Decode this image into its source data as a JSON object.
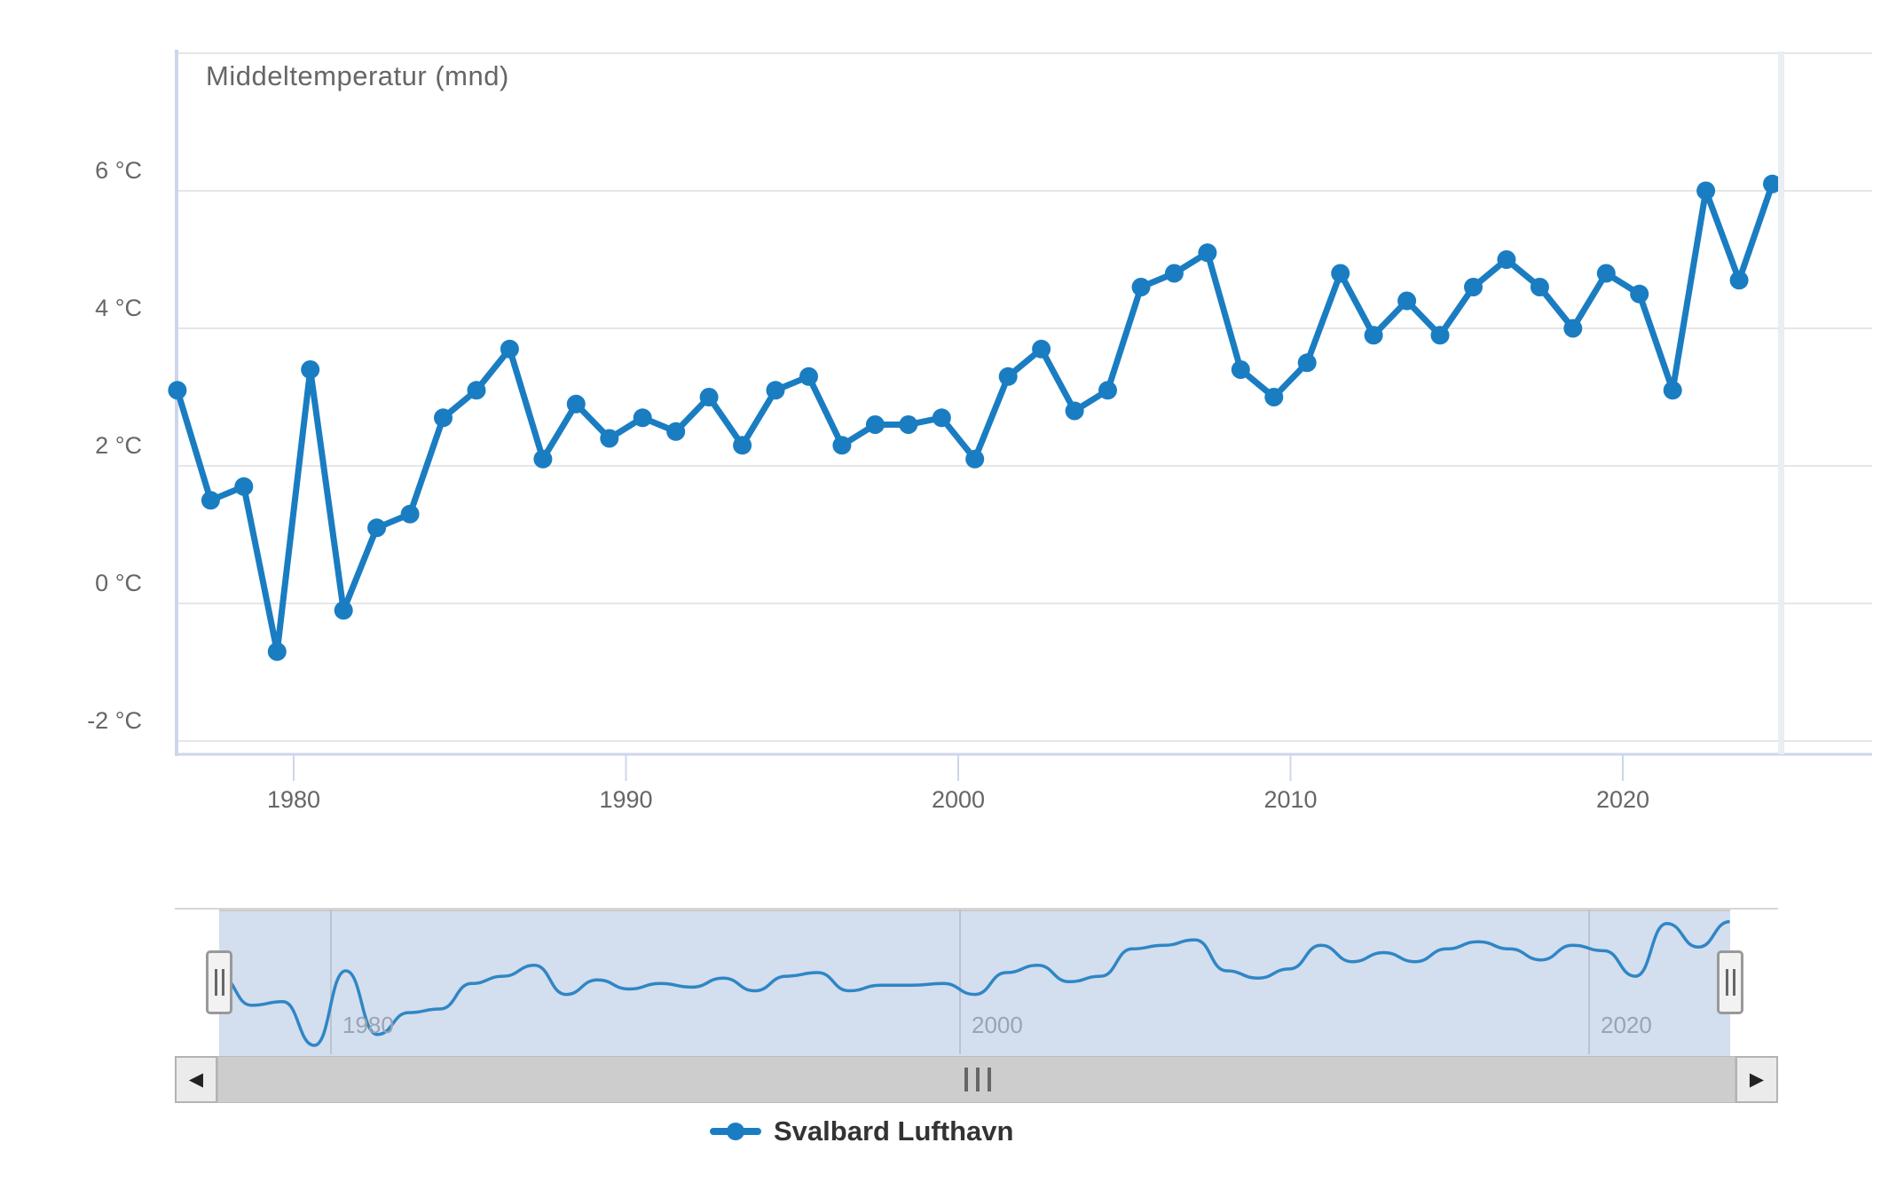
{
  "chart": {
    "title": "Middeltemperatur (mnd)"
  },
  "colors": {
    "series_blue": "#1a7dc2",
    "navigator_line_blue": "#2f86c5",
    "grid_gray": "#e6e6e6",
    "axis_lavender": "#ccd6eb",
    "label_gray": "#666666",
    "navigator_mask_blue": "#d3deef",
    "scrollbar_gray": "#cdcdcd"
  },
  "y_axis": {
    "tick_labels": [
      "6 °C",
      "4 °C",
      "2 °C",
      "0 °C",
      "-2 °C"
    ],
    "tick_values": [
      6,
      4,
      2,
      0,
      -2
    ],
    "grid_values": [
      8,
      6,
      4,
      2,
      0,
      -2
    ]
  },
  "x_axis": {
    "tick_years": [
      1980,
      1990,
      2000,
      2010,
      2020
    ]
  },
  "navigator": {
    "tick_years": [
      1980,
      2000,
      2020
    ],
    "scrollbar": {
      "left_arrow": "◀",
      "right_arrow": "▶"
    }
  },
  "legend": {
    "series_label": "Svalbard Lufthavn"
  },
  "chart_data": {
    "type": "line",
    "title": "Middeltemperatur (mnd)",
    "xlabel": "",
    "ylabel": "°C",
    "ylim": [
      -2.3,
      8
    ],
    "x_ticks": [
      1980,
      1990,
      2000,
      2010,
      2020
    ],
    "y_ticks": [
      6,
      4,
      2,
      0,
      -2
    ],
    "grid": true,
    "legend_position": "bottom",
    "marker": "circle",
    "navigator": true,
    "categories": [
      1976,
      1977,
      1978,
      1979,
      1980,
      1981,
      1982,
      1983,
      1984,
      1985,
      1986,
      1987,
      1988,
      1989,
      1990,
      1991,
      1992,
      1993,
      1994,
      1995,
      1996,
      1997,
      1998,
      1999,
      2000,
      2001,
      2002,
      2003,
      2004,
      2005,
      2006,
      2007,
      2008,
      2009,
      2010,
      2011,
      2012,
      2013,
      2014,
      2015,
      2016,
      2017,
      2018,
      2019,
      2020,
      2021,
      2022,
      2023,
      2024
    ],
    "series": [
      {
        "name": "Svalbard Lufthavn",
        "values": [
          3.1,
          1.5,
          1.7,
          -0.7,
          3.4,
          -0.1,
          1.1,
          1.3,
          2.7,
          3.1,
          3.7,
          2.1,
          2.9,
          2.4,
          2.7,
          2.5,
          3.0,
          2.3,
          3.1,
          3.3,
          2.3,
          2.6,
          2.6,
          2.7,
          2.1,
          3.3,
          3.7,
          2.8,
          3.1,
          4.6,
          4.8,
          5.1,
          3.4,
          3.0,
          3.5,
          4.8,
          3.9,
          4.4,
          3.9,
          4.6,
          5.0,
          4.6,
          4.0,
          4.8,
          4.5,
          3.1,
          6.0,
          4.7,
          6.1
        ]
      }
    ]
  }
}
